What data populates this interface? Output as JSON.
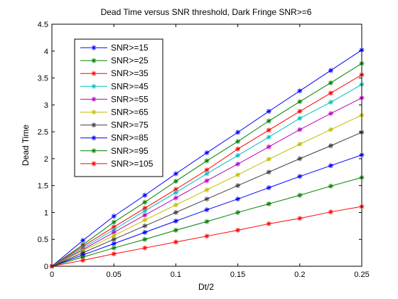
{
  "chart_data": {
    "type": "line",
    "title": "Dead Time versus SNR threshold, Dark Fringe SNR>=6",
    "xlabel": "Dt/2",
    "ylabel": "Dead Time",
    "xlim": [
      0,
      0.25
    ],
    "ylim": [
      0,
      4.5
    ],
    "xticks": [
      0,
      0.05,
      0.1,
      0.15,
      0.2,
      0.25
    ],
    "xtick_labels": [
      "0",
      "0.05",
      "0.1",
      "0.15",
      "0.2",
      "0.25"
    ],
    "yticks": [
      0,
      0.5,
      1,
      1.5,
      2,
      2.5,
      3,
      3.5,
      4,
      4.5
    ],
    "ytick_labels": [
      "0",
      "0.5",
      "1",
      "1.5",
      "2",
      "2.5",
      "3",
      "3.5",
      "4",
      "4.5"
    ],
    "grid": false,
    "legend_position": "top-left",
    "marker": "*",
    "x": [
      0,
      0.025,
      0.05,
      0.075,
      0.1,
      0.125,
      0.15,
      0.175,
      0.2,
      0.225,
      0.25
    ],
    "series": [
      {
        "name": "SNR>=15",
        "color": "#0000ff",
        "values": [
          0,
          0.48,
          0.93,
          1.32,
          1.72,
          2.11,
          2.49,
          2.88,
          3.26,
          3.64,
          4.02
        ]
      },
      {
        "name": "SNR>=25",
        "color": "#008000",
        "values": [
          0,
          0.4,
          0.82,
          1.19,
          1.58,
          1.96,
          2.32,
          2.7,
          3.06,
          3.41,
          3.77
        ]
      },
      {
        "name": "SNR>=35",
        "color": "#ff0000",
        "values": [
          0,
          0.37,
          0.73,
          1.08,
          1.43,
          1.79,
          2.18,
          2.53,
          2.88,
          3.22,
          3.56
        ]
      },
      {
        "name": "SNR>=45",
        "color": "#00bfbf",
        "values": [
          0,
          0.34,
          0.68,
          1.03,
          1.37,
          1.72,
          2.06,
          2.4,
          2.75,
          3.05,
          3.38
        ]
      },
      {
        "name": "SNR>=55",
        "color": "#bf00bf",
        "values": [
          0,
          0.31,
          0.63,
          0.95,
          1.27,
          1.59,
          1.9,
          2.22,
          2.54,
          2.84,
          3.13
        ]
      },
      {
        "name": "SNR>=65",
        "color": "#bfbf00",
        "values": [
          0,
          0.29,
          0.57,
          0.86,
          1.14,
          1.42,
          1.7,
          1.99,
          2.27,
          2.54,
          2.81
        ]
      },
      {
        "name": "SNR>=75",
        "color": "#404040",
        "values": [
          0,
          0.25,
          0.5,
          0.75,
          1.0,
          1.25,
          1.5,
          1.75,
          2.0,
          2.24,
          2.49
        ]
      },
      {
        "name": "SNR>=85",
        "color": "#0000ff",
        "values": [
          0,
          0.21,
          0.42,
          0.63,
          0.84,
          1.05,
          1.25,
          1.46,
          1.67,
          1.87,
          2.07
        ]
      },
      {
        "name": "SNR>=95",
        "color": "#008000",
        "values": [
          0,
          0.17,
          0.34,
          0.5,
          0.67,
          0.83,
          1.0,
          1.16,
          1.32,
          1.49,
          1.65
        ]
      },
      {
        "name": "SNR>=105",
        "color": "#ff0000",
        "values": [
          0,
          0.11,
          0.23,
          0.34,
          0.45,
          0.56,
          0.67,
          0.79,
          0.89,
          1.01,
          1.11
        ]
      }
    ]
  }
}
